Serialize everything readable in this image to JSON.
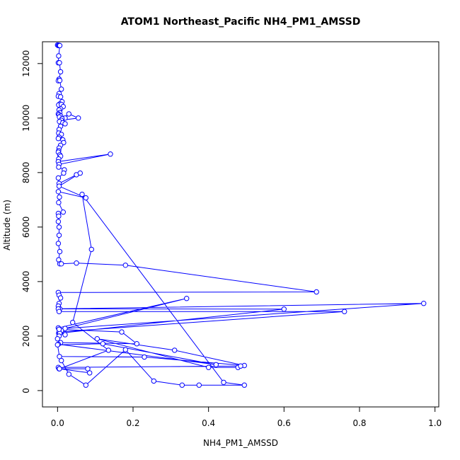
{
  "chart_data": {
    "type": "line",
    "title": "ATOM1 Northeast_Pacific NH4_PM1_AMSSD",
    "xlabel": "NH4_PM1_AMSSD",
    "ylabel": "Altitude (m)",
    "xlim": [
      -0.04,
      1.01
    ],
    "ylim": [
      -600,
      12800
    ],
    "xticks": [
      0.0,
      0.2,
      0.4,
      0.6,
      0.8,
      1.0
    ],
    "xtick_labels": [
      "0.0",
      "0.2",
      "0.4",
      "0.6",
      "0.8",
      "1.0"
    ],
    "yticks": [
      0,
      2000,
      4000,
      6000,
      8000,
      10000,
      12000
    ],
    "ytick_labels": [
      "0",
      "2000",
      "4000",
      "6000",
      "8000",
      "10000",
      "12000"
    ],
    "grid": false,
    "markers": "open-circle",
    "line_color": "#0000ff",
    "series": [
      {
        "x": [
          0.0,
          0.002,
          0.004,
          0.006,
          0.003,
          0.002,
          0.005,
          0.008,
          0.004,
          0.002,
          0.006,
          0.01,
          0.004,
          0.002,
          0.008,
          0.012,
          0.006,
          0.003,
          0.01,
          0.015,
          0.008,
          0.004,
          0.006,
          0.002,
          0.004,
          0.008,
          0.005,
          0.02,
          0.012,
          0.03,
          0.055,
          0.01,
          0.005,
          0.014,
          0.02,
          0.008,
          0.004,
          0.003,
          0.01,
          0.004,
          0.002,
          0.014,
          0.016,
          0.008,
          0.004,
          0.003,
          0.002,
          0.006,
          0.008,
          0.003,
          0.002,
          0.14,
          0.004,
          0.003,
          0.018,
          0.016,
          0.002,
          0.004,
          0.05,
          0.06,
          0.004,
          0.075,
          0.002,
          0.005,
          0.003,
          0.015,
          0.002,
          0.003,
          0.002,
          0.004,
          0.004,
          0.002,
          0.006,
          0.003,
          0.006,
          0.01,
          0.05,
          0.18,
          0.686,
          0.002,
          0.004,
          0.008,
          0.004,
          0.002,
          0.006,
          0.97,
          0.02,
          0.342,
          0.002,
          0.004,
          0.01,
          0.003,
          0.6,
          0.002,
          0.004,
          0.76,
          0.004,
          0.02,
          0.006,
          0.004,
          0.0,
          0.004,
          0.17,
          0.21,
          0.008,
          0.002,
          0.42,
          0.12,
          0.0,
          0.005,
          0.23,
          0.495,
          0.31,
          0.105,
          0.4,
          0.478,
          0.485,
          0.002,
          0.004,
          0.08,
          0.085,
          0.005,
          0.135,
          0.04,
          0.09,
          0.065,
          0.44,
          0.495,
          0.375,
          0.33,
          0.255,
          0.18,
          0.075,
          0.03,
          0.01
        ],
        "y": [
          12680,
          12660,
          12670,
          12660,
          12280,
          12030,
          12030,
          11700,
          11430,
          11370,
          11380,
          11060,
          10900,
          10800,
          10780,
          10600,
          10520,
          10480,
          10500,
          10420,
          10340,
          10300,
          10200,
          10150,
          10120,
          10080,
          10040,
          10000,
          9980,
          10150,
          10000,
          9920,
          9870,
          9830,
          9790,
          9700,
          9580,
          9450,
          9400,
          9300,
          9250,
          9200,
          9100,
          9000,
          8900,
          8800,
          8750,
          8650,
          8600,
          8500,
          8400,
          8680,
          8300,
          8200,
          8100,
          7980,
          7800,
          7600,
          7920,
          7980,
          7500,
          7070,
          7300,
          7100,
          6900,
          6550,
          6500,
          6400,
          6200,
          6000,
          5700,
          5400,
          5100,
          4800,
          4650,
          4650,
          4680,
          4600,
          3620,
          3600,
          3500,
          3400,
          3200,
          3100,
          3000,
          3200,
          2280,
          3380,
          2300,
          2250,
          2200,
          2100,
          2990,
          3000,
          2900,
          2900,
          2150,
          2050,
          2100,
          2000,
          1900,
          2250,
          2150,
          1720,
          1760,
          1700,
          950,
          1720,
          1680,
          1250,
          1230,
          920,
          1480,
          1900,
          850,
          850,
          900,
          850,
          800,
          800,
          650,
          800,
          1480,
          2500,
          5180,
          7200,
          300,
          200,
          200,
          200,
          350,
          1500,
          200,
          600,
          1100
        ]
      }
    ]
  }
}
